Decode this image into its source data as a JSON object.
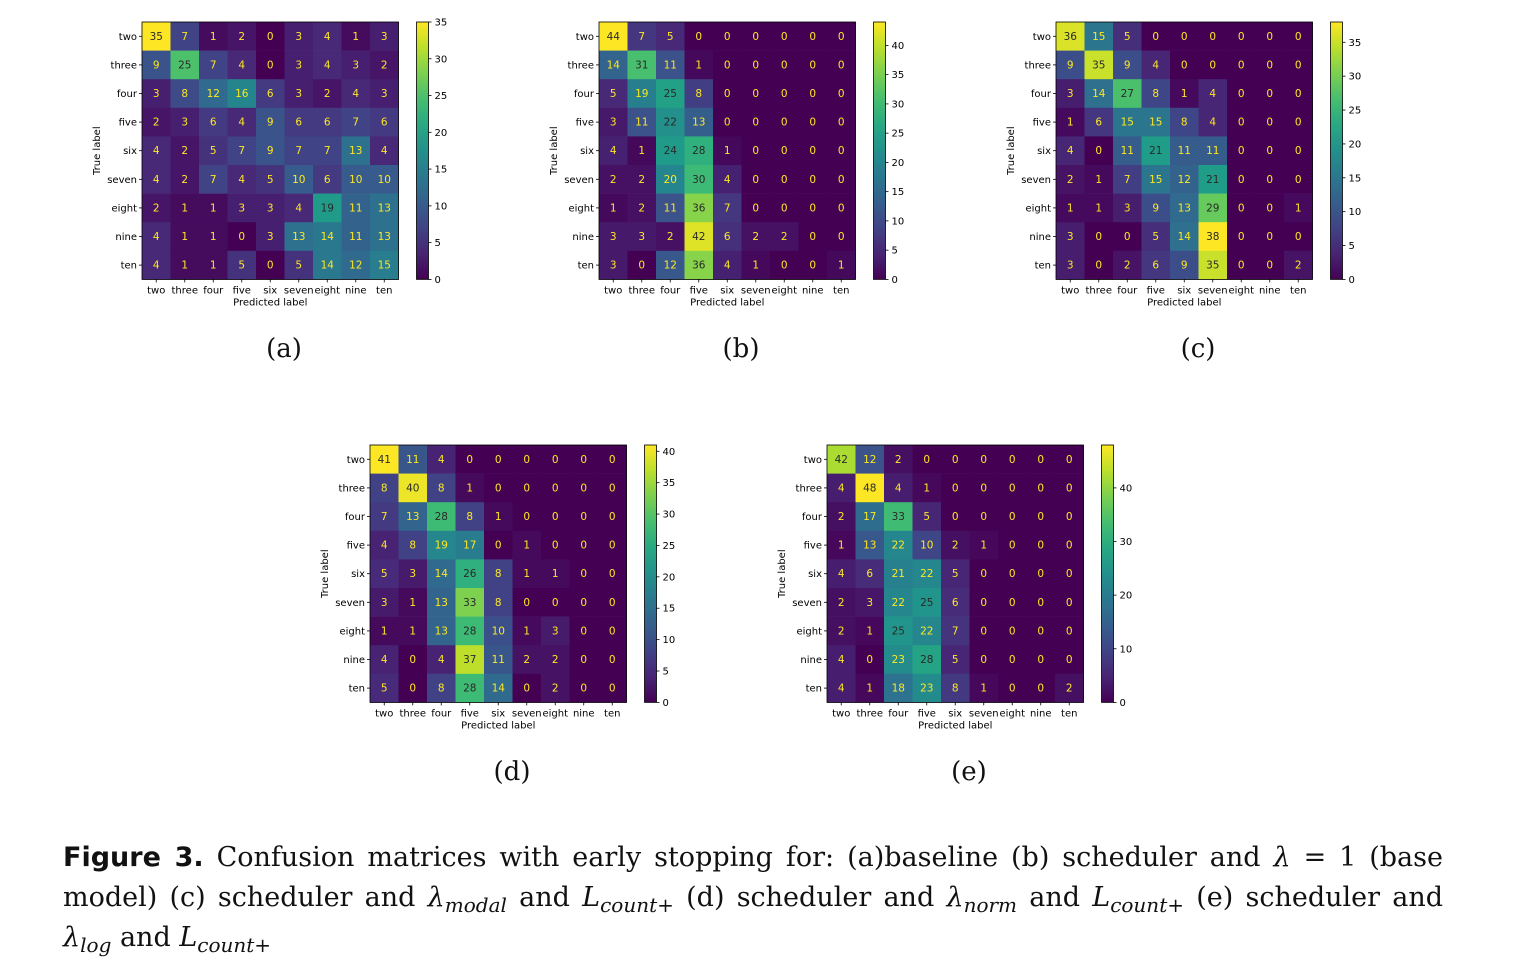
{
  "labels": [
    "two",
    "three",
    "four",
    "five",
    "six",
    "seven",
    "eight",
    "nine",
    "ten"
  ],
  "chart_data": [
    {
      "type": "heatmap",
      "panel": "(a)",
      "xlabel": "Predicted label",
      "ylabel": "True label",
      "colorbar_ticks": [
        0,
        5,
        10,
        15,
        20,
        25,
        30,
        35
      ],
      "vmax": 35,
      "matrix": [
        [
          35,
          7,
          1,
          2,
          0,
          3,
          4,
          1,
          3
        ],
        [
          9,
          25,
          7,
          4,
          0,
          3,
          4,
          3,
          2
        ],
        [
          3,
          8,
          12,
          16,
          6,
          3,
          2,
          4,
          3
        ],
        [
          2,
          3,
          6,
          4,
          9,
          6,
          6,
          7,
          6
        ],
        [
          4,
          2,
          5,
          7,
          9,
          7,
          7,
          13,
          4
        ],
        [
          4,
          2,
          7,
          4,
          5,
          10,
          6,
          10,
          10
        ],
        [
          2,
          1,
          1,
          3,
          3,
          4,
          19,
          11,
          13
        ],
        [
          4,
          1,
          1,
          0,
          3,
          13,
          14,
          11,
          13
        ],
        [
          4,
          1,
          1,
          5,
          0,
          5,
          14,
          12,
          15
        ]
      ]
    },
    {
      "type": "heatmap",
      "panel": "(b)",
      "xlabel": "Predicted label",
      "ylabel": "True label",
      "colorbar_ticks": [
        0,
        5,
        10,
        15,
        20,
        25,
        30,
        35,
        40
      ],
      "vmax": 44,
      "matrix": [
        [
          44,
          7,
          5,
          0,
          0,
          0,
          0,
          0,
          0
        ],
        [
          14,
          31,
          11,
          1,
          0,
          0,
          0,
          0,
          0
        ],
        [
          5,
          19,
          25,
          8,
          0,
          0,
          0,
          0,
          0
        ],
        [
          3,
          11,
          22,
          13,
          0,
          0,
          0,
          0,
          0
        ],
        [
          4,
          1,
          24,
          28,
          1,
          0,
          0,
          0,
          0
        ],
        [
          2,
          2,
          20,
          30,
          4,
          0,
          0,
          0,
          0
        ],
        [
          1,
          2,
          11,
          36,
          7,
          0,
          0,
          0,
          0
        ],
        [
          3,
          3,
          2,
          42,
          6,
          2,
          2,
          0,
          0
        ],
        [
          3,
          0,
          12,
          36,
          4,
          1,
          0,
          0,
          1
        ]
      ]
    },
    {
      "type": "heatmap",
      "panel": "(c)",
      "xlabel": "Predicted label",
      "ylabel": "True label",
      "colorbar_ticks": [
        0,
        5,
        10,
        15,
        20,
        25,
        30,
        35
      ],
      "vmax": 38,
      "matrix": [
        [
          36,
          15,
          5,
          0,
          0,
          0,
          0,
          0,
          0
        ],
        [
          9,
          35,
          9,
          4,
          0,
          0,
          0,
          0,
          0
        ],
        [
          3,
          14,
          27,
          8,
          1,
          4,
          0,
          0,
          0
        ],
        [
          1,
          6,
          15,
          15,
          8,
          4,
          0,
          0,
          0
        ],
        [
          4,
          0,
          11,
          21,
          11,
          11,
          0,
          0,
          0
        ],
        [
          2,
          1,
          7,
          15,
          12,
          21,
          0,
          0,
          0
        ],
        [
          1,
          1,
          3,
          9,
          13,
          29,
          0,
          0,
          1
        ],
        [
          3,
          0,
          0,
          5,
          14,
          38,
          0,
          0,
          0
        ],
        [
          3,
          0,
          2,
          6,
          9,
          35,
          0,
          0,
          2
        ]
      ]
    },
    {
      "type": "heatmap",
      "panel": "(d)",
      "xlabel": "Predicted label",
      "ylabel": "True label",
      "colorbar_ticks": [
        0,
        5,
        10,
        15,
        20,
        25,
        30,
        35,
        40
      ],
      "vmax": 41,
      "matrix": [
        [
          41,
          11,
          4,
          0,
          0,
          0,
          0,
          0,
          0
        ],
        [
          8,
          40,
          8,
          1,
          0,
          0,
          0,
          0,
          0
        ],
        [
          7,
          13,
          28,
          8,
          1,
          0,
          0,
          0,
          0
        ],
        [
          4,
          8,
          19,
          17,
          0,
          1,
          0,
          0,
          0
        ],
        [
          5,
          3,
          14,
          26,
          8,
          1,
          1,
          0,
          0
        ],
        [
          3,
          1,
          13,
          33,
          8,
          0,
          0,
          0,
          0
        ],
        [
          1,
          1,
          13,
          28,
          10,
          1,
          3,
          0,
          0
        ],
        [
          4,
          0,
          4,
          37,
          11,
          2,
          2,
          0,
          0
        ],
        [
          5,
          0,
          8,
          28,
          14,
          0,
          2,
          0,
          0
        ]
      ]
    },
    {
      "type": "heatmap",
      "panel": "(e)",
      "xlabel": "Predicted label",
      "ylabel": "True label",
      "colorbar_ticks": [
        0,
        10,
        20,
        30,
        40
      ],
      "vmax": 48,
      "matrix": [
        [
          42,
          12,
          2,
          0,
          0,
          0,
          0,
          0,
          0
        ],
        [
          4,
          48,
          4,
          1,
          0,
          0,
          0,
          0,
          0
        ],
        [
          2,
          17,
          33,
          5,
          0,
          0,
          0,
          0,
          0
        ],
        [
          1,
          13,
          22,
          10,
          2,
          1,
          0,
          0,
          0
        ],
        [
          4,
          6,
          21,
          22,
          5,
          0,
          0,
          0,
          0
        ],
        [
          2,
          3,
          22,
          25,
          6,
          0,
          0,
          0,
          0
        ],
        [
          2,
          1,
          25,
          22,
          7,
          0,
          0,
          0,
          0
        ],
        [
          4,
          0,
          23,
          28,
          5,
          0,
          0,
          0,
          0
        ],
        [
          4,
          1,
          18,
          23,
          8,
          1,
          0,
          0,
          2
        ]
      ]
    }
  ],
  "caption": {
    "fig_num": "Figure 3.",
    "t1": " Confusion matrices with early stopping for: (a)baseline (b) scheduler and ",
    "lam": "λ",
    "t2": " = 1 (base model) (c) scheduler and ",
    "sub_modal": "modal",
    "t3": " and ",
    "L": "L",
    "sub_count": "count+",
    "t4": " (d) scheduler and ",
    "sub_norm": "norm",
    "t5": " and ",
    "t6": " (e) scheduler and ",
    "sub_log": "log",
    "t7": " and "
  }
}
